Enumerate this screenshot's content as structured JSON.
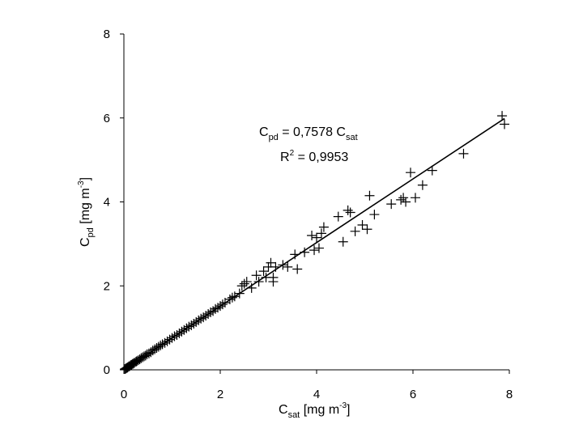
{
  "chart_data": {
    "type": "scatter",
    "xlabel": {
      "base": "C",
      "sub": "sat",
      "rest": " [mg m",
      "sup": "-3",
      "end": "]"
    },
    "ylabel": {
      "base": "C",
      "sub": "pd",
      "rest": " [mg m",
      "sup": "-3",
      "end": "]"
    },
    "xlim": [
      0,
      8
    ],
    "ylim": [
      0,
      8
    ],
    "xticks": [
      0,
      2,
      4,
      6,
      8
    ],
    "yticks": [
      0,
      2,
      4,
      6,
      8
    ],
    "x_tick_labels": [
      "0",
      "2",
      "4",
      "6",
      "8"
    ],
    "y_tick_labels": [
      "0",
      "2",
      "4",
      "6",
      "8"
    ],
    "grid": false,
    "legend": "none",
    "marker": "plus",
    "colors": {
      "marker": "#000000",
      "line": "#000000",
      "axis": "#000000"
    },
    "annotation": {
      "equation": {
        "lhs_base": "C",
        "lhs_sub": "pd",
        "mid": " = 0,7578 C",
        "rhs_sub": "sat"
      },
      "r2": {
        "base": "R",
        "sup": "2",
        "rest": " = 0,9953"
      }
    },
    "fit": {
      "slope": 0.7578,
      "intercept": 0,
      "x_range": [
        0,
        7.9
      ]
    },
    "series": [
      {
        "x": [
          0.02,
          0.04,
          0.05,
          0.07,
          0.08,
          0.1,
          0.12,
          0.14,
          0.16,
          0.18,
          0.2,
          0.22,
          0.25,
          0.27,
          0.3,
          0.33,
          0.36,
          0.39,
          0.42,
          0.45,
          0.48,
          0.52,
          0.56,
          0.6,
          0.64,
          0.68,
          0.72,
          0.76,
          0.8,
          0.85,
          0.9,
          0.95,
          1.0,
          1.05,
          1.1,
          1.15,
          1.2,
          1.25,
          1.3,
          1.35,
          1.4,
          1.45,
          1.5,
          1.55,
          1.6,
          1.65,
          1.7,
          1.75,
          1.8,
          1.85,
          1.9,
          1.95,
          2.0,
          2.05,
          2.1,
          2.2,
          2.25,
          2.3,
          2.4,
          2.45,
          2.5,
          2.55,
          2.65,
          2.75,
          2.8,
          2.9,
          2.95,
          3.0,
          3.05,
          3.1,
          3.1,
          3.15,
          3.3,
          3.4,
          3.55,
          3.6,
          3.75,
          3.9,
          3.95,
          4.0,
          4.05,
          4.1,
          4.15,
          4.45,
          4.55,
          4.65,
          4.7,
          4.8,
          4.95,
          5.05,
          5.1,
          5.2,
          5.55,
          5.75,
          5.8,
          5.85,
          5.95,
          6.05,
          6.2,
          6.4,
          7.05,
          7.85,
          7.9
        ],
        "y": [
          0.02,
          0.03,
          0.04,
          0.05,
          0.06,
          0.08,
          0.09,
          0.11,
          0.12,
          0.14,
          0.15,
          0.17,
          0.19,
          0.21,
          0.23,
          0.25,
          0.28,
          0.3,
          0.32,
          0.34,
          0.37,
          0.39,
          0.42,
          0.46,
          0.49,
          0.52,
          0.55,
          0.58,
          0.61,
          0.64,
          0.68,
          0.72,
          0.76,
          0.8,
          0.83,
          0.87,
          0.91,
          0.95,
          0.99,
          1.03,
          1.06,
          1.1,
          1.14,
          1.18,
          1.22,
          1.25,
          1.29,
          1.33,
          1.37,
          1.4,
          1.45,
          1.48,
          1.52,
          1.56,
          1.6,
          1.68,
          1.72,
          1.75,
          1.82,
          2.0,
          2.05,
          2.1,
          1.95,
          2.25,
          2.1,
          2.35,
          2.2,
          2.45,
          2.55,
          2.2,
          2.1,
          2.45,
          2.5,
          2.45,
          2.75,
          2.4,
          2.8,
          3.2,
          2.85,
          3.15,
          2.9,
          3.25,
          3.4,
          3.65,
          3.05,
          3.8,
          3.75,
          3.3,
          3.45,
          3.35,
          4.15,
          3.7,
          3.95,
          4.05,
          4.1,
          4.0,
          4.7,
          4.1,
          4.4,
          4.75,
          5.15,
          6.05,
          5.85
        ]
      }
    ]
  }
}
